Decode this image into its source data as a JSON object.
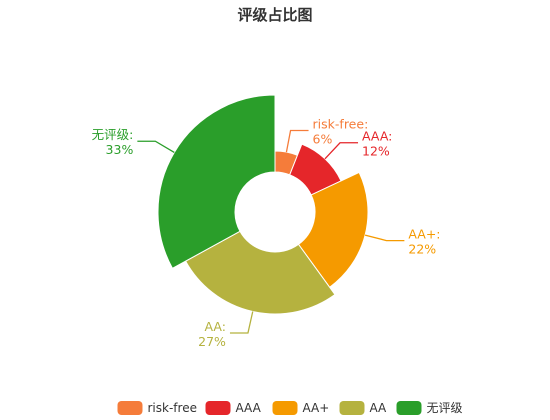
{
  "chart_data": {
    "type": "pie",
    "variant": "rose-donut",
    "title": "评级占比图",
    "legend_position": "bottom",
    "categories": [
      "risk-free",
      "AAA",
      "AA+",
      "AA",
      "无评级"
    ],
    "values": [
      6,
      12,
      22,
      27,
      33
    ],
    "unit": "%",
    "labels": [
      "risk-free:\n6%",
      "AAA:\n12%",
      "AA+:\n22%",
      "AA:\n27%",
      "无评级:\n33%"
    ],
    "colors": [
      "#F57C3A",
      "#E5262A",
      "#F59A00",
      "#B5B23F",
      "#2A9E2A"
    ]
  }
}
